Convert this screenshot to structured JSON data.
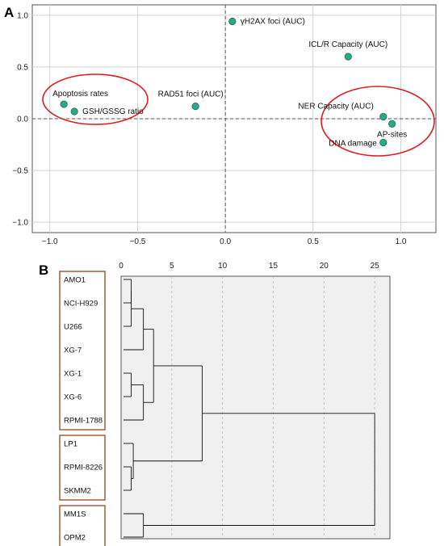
{
  "chart_data": [
    {
      "panel_label": "A",
      "type": "scatter",
      "xlim": [
        -1.1,
        1.2
      ],
      "ylim": [
        -1.1,
        1.1
      ],
      "x_ticks": [
        -1.0,
        -0.5,
        0.0,
        0.5,
        1.0
      ],
      "x_tick_labels": [
        "−1.0",
        "−0.5",
        "0.0",
        "0.5",
        "1.0"
      ],
      "y_ticks": [
        -1.0,
        -0.5,
        0.0,
        0.5,
        1.0
      ],
      "y_tick_labels": [
        "−1.0",
        "−0.5",
        "0.0",
        "0.5",
        "1.0"
      ],
      "grid": true,
      "reference_lines": {
        "x": 0,
        "y": 0
      },
      "point_color": "#2aa88a",
      "points": [
        {
          "label": "γH2AX foci (AUC)",
          "x": 0.04,
          "y": 0.94
        },
        {
          "label": "ICL/R Capacity (AUC)",
          "x": 0.7,
          "y": 0.6
        },
        {
          "label": "Apoptosis rates",
          "x": -0.92,
          "y": 0.14
        },
        {
          "label": "GSH/GSSG ratio",
          "x": -0.86,
          "y": 0.07
        },
        {
          "label": "RAD51 foci (AUC)",
          "x": -0.17,
          "y": 0.12
        },
        {
          "label": "NER Capacity (AUC)",
          "x": 0.9,
          "y": 0.02
        },
        {
          "label": "AP-sites",
          "x": 0.95,
          "y": -0.05
        },
        {
          "label": "DNA damage",
          "x": 0.9,
          "y": -0.23
        }
      ],
      "highlight_color": "#e01b24",
      "highlight_groups": [
        [
          "Apoptosis rates",
          "GSH/GSSG ratio"
        ],
        [
          "NER Capacity (AUC)",
          "AP-sites",
          "DNA damage"
        ]
      ]
    },
    {
      "panel_label": "B",
      "type": "dendrogram",
      "xlim": [
        0,
        26.5
      ],
      "x_ticks": [
        0,
        5,
        10,
        15,
        20,
        25
      ],
      "x_tick_labels": [
        "0",
        "5",
        "10",
        "15",
        "20",
        "25"
      ],
      "leaves": [
        "AMO1",
        "NCI-H929",
        "U266",
        "XG-7",
        "XG-1",
        "XG-6",
        "RPMI-1788",
        "LP1",
        "RPMI-8226",
        "SKMM2",
        "MM1S",
        "OPM2"
      ],
      "merges": [
        {
          "children": [
            "AMO1",
            "NCI-H929"
          ],
          "height": 1.0
        },
        {
          "children": [
            "XG-1",
            "XG-6"
          ],
          "height": 1.0
        },
        {
          "children": [
            "RPMI-8226",
            "SKMM2"
          ],
          "height": 1.0
        },
        {
          "children": [
            [
              "AMO1",
              "NCI-H929"
            ],
            "U266"
          ],
          "height": 1.0
        },
        {
          "children": [
            [
              "AMO1",
              "NCI-H929",
              "U266"
            ],
            "XG-7"
          ],
          "height": 2.2
        },
        {
          "children": [
            [
              "XG-1",
              "XG-6"
            ],
            "RPMI-1788"
          ],
          "height": 2.2
        },
        {
          "children": [
            "LP1",
            [
              "RPMI-8226",
              "SKMM2"
            ]
          ],
          "height": 1.2
        },
        {
          "children": [
            "MM1S",
            "OPM2"
          ],
          "height": 2.2
        },
        {
          "children": [
            [
              "AMO1",
              "NCI-H929",
              "U266",
              "XG-7"
            ],
            [
              "XG-1",
              "XG-6",
              "RPMI-1788"
            ]
          ],
          "height": 3.2
        },
        {
          "children": [
            [
              "AMO1",
              "NCI-H929",
              "U266",
              "XG-7",
              "XG-1",
              "XG-6",
              "RPMI-1788"
            ],
            [
              "LP1",
              "RPMI-8226",
              "SKMM2"
            ]
          ],
          "height": 8.0
        },
        {
          "children": [
            [
              "AMO1",
              "NCI-H929",
              "U266",
              "XG-7",
              "XG-1",
              "XG-6",
              "RPMI-1788",
              "LP1",
              "RPMI-8226",
              "SKMM2"
            ],
            [
              "MM1S",
              "OPM2"
            ]
          ],
          "height": 25.0
        }
      ],
      "cluster_box_color": "#a0522d",
      "leaf_clusters": [
        [
          "AMO1",
          "NCI-H929",
          "U266",
          "XG-7",
          "XG-1",
          "XG-6",
          "RPMI-1788"
        ],
        [
          "LP1",
          "RPMI-8226",
          "SKMM2"
        ],
        [
          "MM1S",
          "OPM2"
        ]
      ]
    }
  ]
}
